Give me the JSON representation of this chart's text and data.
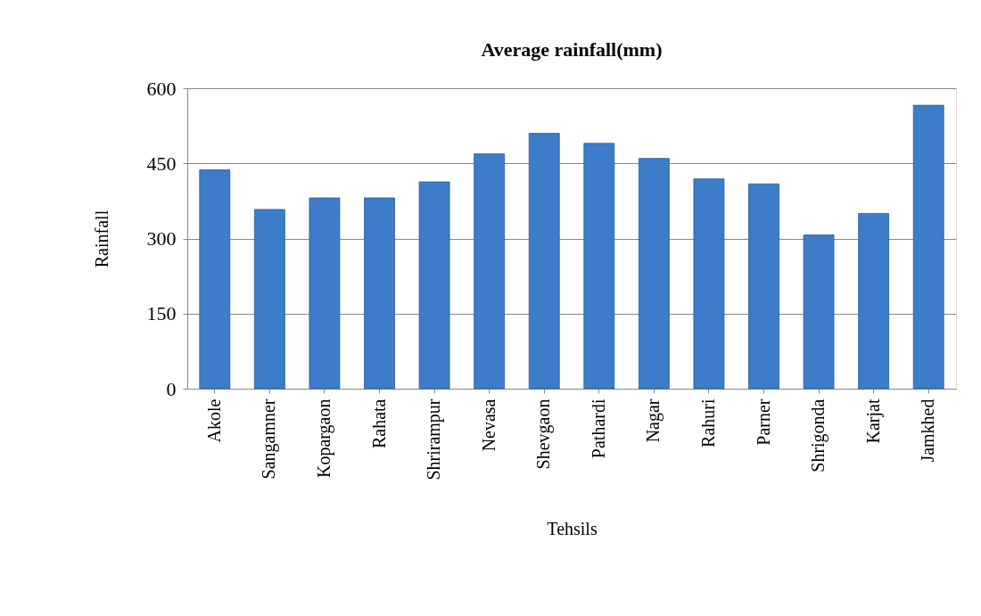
{
  "chart_data": {
    "type": "bar",
    "title": "Average rainfall(mm)",
    "xlabel": "Tehsils",
    "ylabel": "Rainfall",
    "categories": [
      "Akole",
      "Sangamner",
      "Kopargaon",
      "Rahata",
      "Shrirampur",
      "Nevasa",
      "Shevgaon",
      "Pathardi",
      "Nagar",
      "Rahuri",
      "Parner",
      "Shrigonda",
      "Karjat",
      "Jamkhed"
    ],
    "values": [
      437,
      358,
      381,
      381,
      413,
      469,
      510,
      490,
      460,
      419,
      409,
      307,
      350,
      566
    ],
    "color": "#3c7cc9",
    "ylim": [
      0,
      600
    ],
    "yticks": [
      0,
      150,
      300,
      450,
      600
    ],
    "grid": "y"
  }
}
